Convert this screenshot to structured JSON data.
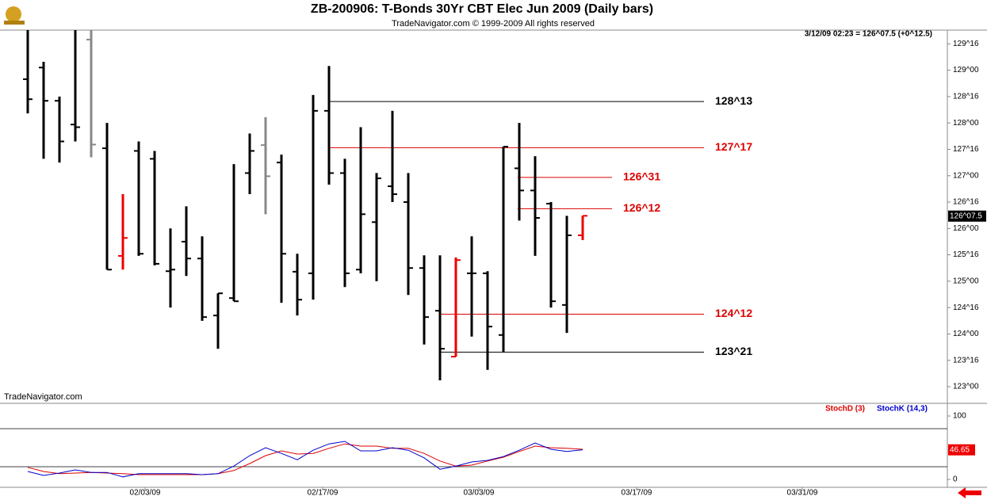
{
  "header": {
    "title": "ZB-200906:  T-Bonds 30Yr CBT Elec Jun 2009  (Daily bars)",
    "subtitle": "TradeNavigator.com © 1999-2009 All rights reserved",
    "quote": "3/12/09 02:23 = 126^07.5 (+0^12.5)",
    "watermark": "TradeNavigator.com"
  },
  "chart_data": [
    {
      "type": "ohlc",
      "open": [
        128.83,
        129.05,
        128.42,
        127.97,
        129.58,
        127.52,
        125.48,
        127.47,
        127.32,
        125.19,
        125.75,
        125.43,
        124.35,
        124.68,
        127.05,
        127.58,
        127.25,
        125.18,
        125.15,
        128.23,
        127.05,
        125.22,
        126.12,
        126.8,
        126.5,
        125.25,
        124.44,
        123.57,
        125.15,
        125.15,
        123.98,
        127.14,
        126.72,
        126.47,
        124.55,
        125.87
      ],
      "high": [
        129.76,
        129.16,
        128.5,
        129.76,
        129.76,
        128.0,
        126.65,
        127.65,
        127.47,
        126.0,
        126.42,
        125.85,
        124.77,
        127.22,
        127.8,
        128.11,
        127.4,
        125.52,
        128.53,
        129.08,
        127.32,
        127.92,
        127.05,
        128.23,
        127.05,
        125.49,
        125.49,
        125.45,
        125.85,
        125.19,
        127.55,
        128.0,
        127.37,
        126.5,
        126.24,
        126.24
      ],
      "low": [
        128.18,
        127.32,
        127.25,
        127.65,
        127.35,
        125.22,
        125.22,
        125.48,
        125.3,
        124.5,
        125.1,
        124.25,
        123.72,
        124.62,
        126.65,
        126.27,
        124.59,
        124.35,
        124.65,
        126.83,
        124.89,
        125.15,
        125.0,
        126.5,
        124.74,
        123.8,
        123.12,
        123.57,
        123.95,
        123.32,
        123.65,
        126.15,
        125.48,
        124.5,
        124.02,
        125.78
      ],
      "close": [
        128.45,
        128.42,
        127.65,
        127.92,
        127.59,
        125.22,
        125.82,
        125.52,
        125.33,
        125.22,
        125.43,
        124.32,
        124.77,
        124.62,
        127.47,
        126.99,
        125.52,
        124.65,
        128.23,
        127.05,
        125.15,
        126.27,
        126.95,
        126.65,
        125.25,
        124.32,
        123.72,
        125.4,
        125.15,
        124.14,
        127.55,
        126.72,
        126.2,
        124.62,
        125.87,
        126.24
      ],
      "colors": [
        "#000",
        "#000",
        "#000",
        "#000",
        "#888",
        "#000",
        "#e00",
        "#000",
        "#000",
        "#000",
        "#000",
        "#000",
        "#000",
        "#000",
        "#000",
        "#888",
        "#000",
        "#000",
        "#000",
        "#000",
        "#000",
        "#000",
        "#000",
        "#000",
        "#000",
        "#000",
        "#000",
        "#e00",
        "#000",
        "#000",
        "#000",
        "#000",
        "#000",
        "#000",
        "#000",
        "#e00"
      ],
      "levels": [
        {
          "value": 128.40625,
          "label": "128^13",
          "color": "#000000"
        },
        {
          "value": 127.53125,
          "label": "127^17",
          "color": "#dd0000"
        },
        {
          "value": 126.96875,
          "label": "126^31",
          "color": "#dd0000"
        },
        {
          "value": 126.375,
          "label": "126^12",
          "color": "#dd0000"
        },
        {
          "value": 124.375,
          "label": "124^12",
          "color": "#dd0000"
        },
        {
          "value": 123.65625,
          "label": "123^21",
          "color": "#000000"
        }
      ],
      "last": {
        "value": 126.234,
        "label": "126^07.5"
      },
      "xlim": [
        -1.75,
        58
      ],
      "ylim": [
        122.7,
        129.76
      ],
      "yticks": [
        {
          "value": 123,
          "label": "123^00"
        },
        {
          "value": 123.5,
          "label": "123^16"
        },
        {
          "value": 124,
          "label": "124^00"
        },
        {
          "value": 124.5,
          "label": "124^16"
        },
        {
          "value": 125,
          "label": "125^00"
        },
        {
          "value": 125.5,
          "label": "125^16"
        },
        {
          "value": 126,
          "label": "126^00"
        },
        {
          "value": 126.5,
          "label": "126^16"
        },
        {
          "value": 127,
          "label": "127^00"
        },
        {
          "value": 127.5,
          "label": "127^16"
        },
        {
          "value": 128,
          "label": "128^00"
        },
        {
          "value": 128.5,
          "label": "128^16"
        },
        {
          "value": 129,
          "label": "129^00"
        },
        {
          "value": 129.5,
          "label": "129^16"
        }
      ]
    },
    {
      "type": "line",
      "series": [
        {
          "name": "StochD (3)",
          "color": "#dd0000",
          "values": [
            19,
            12.5,
            9,
            10,
            11,
            10,
            9,
            7.5,
            7.5,
            7.5,
            7.5,
            7.5,
            9,
            14,
            25,
            37.5,
            45,
            40,
            41,
            49,
            56,
            52.5,
            52.5,
            49,
            49,
            41,
            29,
            21,
            22.5,
            29,
            35,
            44,
            52.5,
            50,
            49,
            47.5
          ]
        },
        {
          "name": "StochK (14,3)",
          "color": "#0000cc",
          "values": [
            12.5,
            6.25,
            10,
            15,
            11,
            11,
            4,
            9,
            9,
            9,
            9,
            7.5,
            9,
            21,
            37.5,
            50,
            41,
            31,
            46,
            56,
            60,
            45,
            45,
            50,
            46,
            34,
            16,
            21,
            27.5,
            30,
            36,
            46,
            57.5,
            47.5,
            44,
            46.65
          ]
        }
      ],
      "xlim": [
        -1.75,
        58
      ],
      "ylim": [
        -12.5,
        118.75
      ],
      "yticks": [
        0,
        100
      ],
      "levels": [
        20,
        80
      ],
      "xticks": [
        {
          "value": 7.4,
          "label": "02/03/09"
        },
        {
          "value": 18.6,
          "label": "02/17/09"
        },
        {
          "value": 28.45,
          "label": "03/03/09"
        },
        {
          "value": 38.4,
          "label": "03/17/09"
        },
        {
          "value": 48.85,
          "label": "03/31/09"
        }
      ]
    }
  ]
}
